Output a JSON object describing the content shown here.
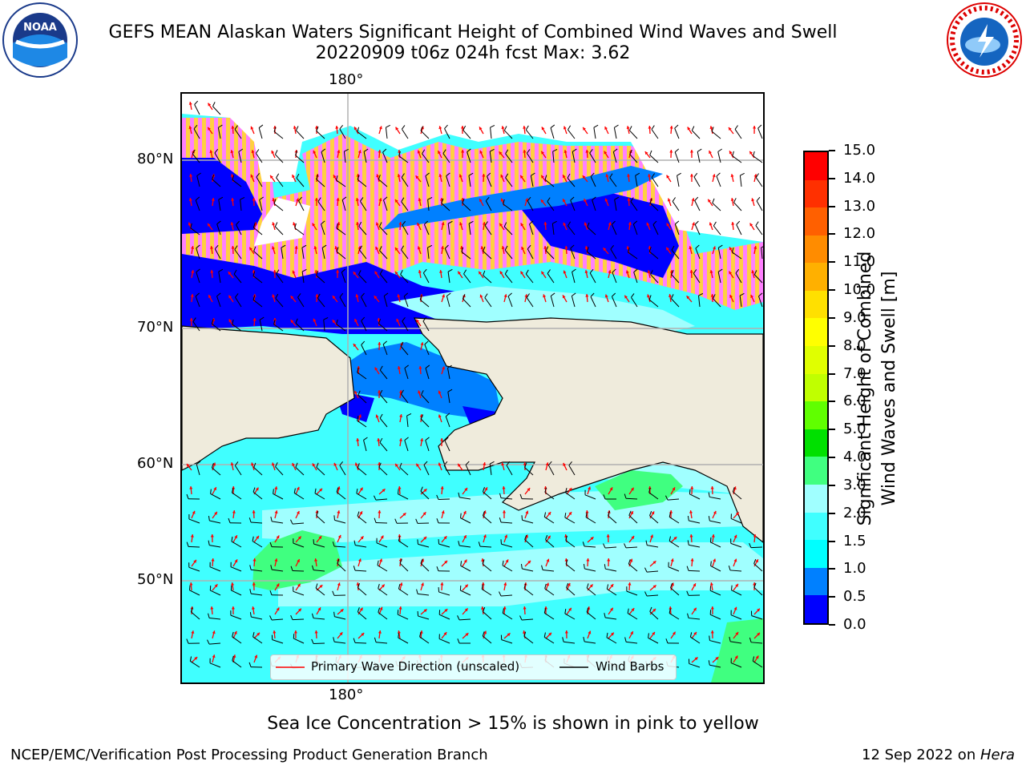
{
  "header": {
    "title_line1": "GEFS MEAN Alaskan Waters Significant Height of Combined Wind Waves and Swell",
    "title_line2": "20220909 t06z 024h fcst   Max: 3.62",
    "noaa_logo_text": "NOAA",
    "nws_logo_text": "NATIONAL WEATHER SERVICE"
  },
  "map": {
    "lon_label_top": "180°",
    "lon_label_bottom": "180°",
    "lat_labels": [
      "80°N",
      "70°N",
      "60°N",
      "50°N"
    ],
    "legend": {
      "wave_label": "Primary Wave Direction (unscaled)",
      "wind_label": "Wind Barbs",
      "wave_color": "#ff0000",
      "wind_color": "#000000"
    }
  },
  "colorbar": {
    "label_line1": "Significant Height of Combined",
    "label_line2": "Wind Waves and Swell [m]",
    "ticks": [
      "0.0",
      "0.5",
      "1.0",
      "1.5",
      "2.0",
      "3.0",
      "4.0",
      "5.0",
      "6.0",
      "7.0",
      "8.0",
      "9.0",
      "10.0",
      "11.0",
      "12.0",
      "13.0",
      "14.0",
      "15.0"
    ],
    "colors": [
      "#0000ff",
      "#0080ff",
      "#00ffff",
      "#40ffff",
      "#a0ffff",
      "#40ff80",
      "#00e000",
      "#60ff00",
      "#c0ff00",
      "#e0ff00",
      "#ffff00",
      "#ffe000",
      "#ffb000",
      "#ff8c00",
      "#ff6000",
      "#ff3000",
      "#ff0000"
    ]
  },
  "notes": {
    "ice_note": "Sea Ice Concentration > 15% is shown in pink to yellow"
  },
  "footer": {
    "left": "NCEP/EMC/Verification Post Processing Product Generation Branch",
    "right_prefix": "12 Sep 2022 on ",
    "right_host": "Hera"
  }
}
